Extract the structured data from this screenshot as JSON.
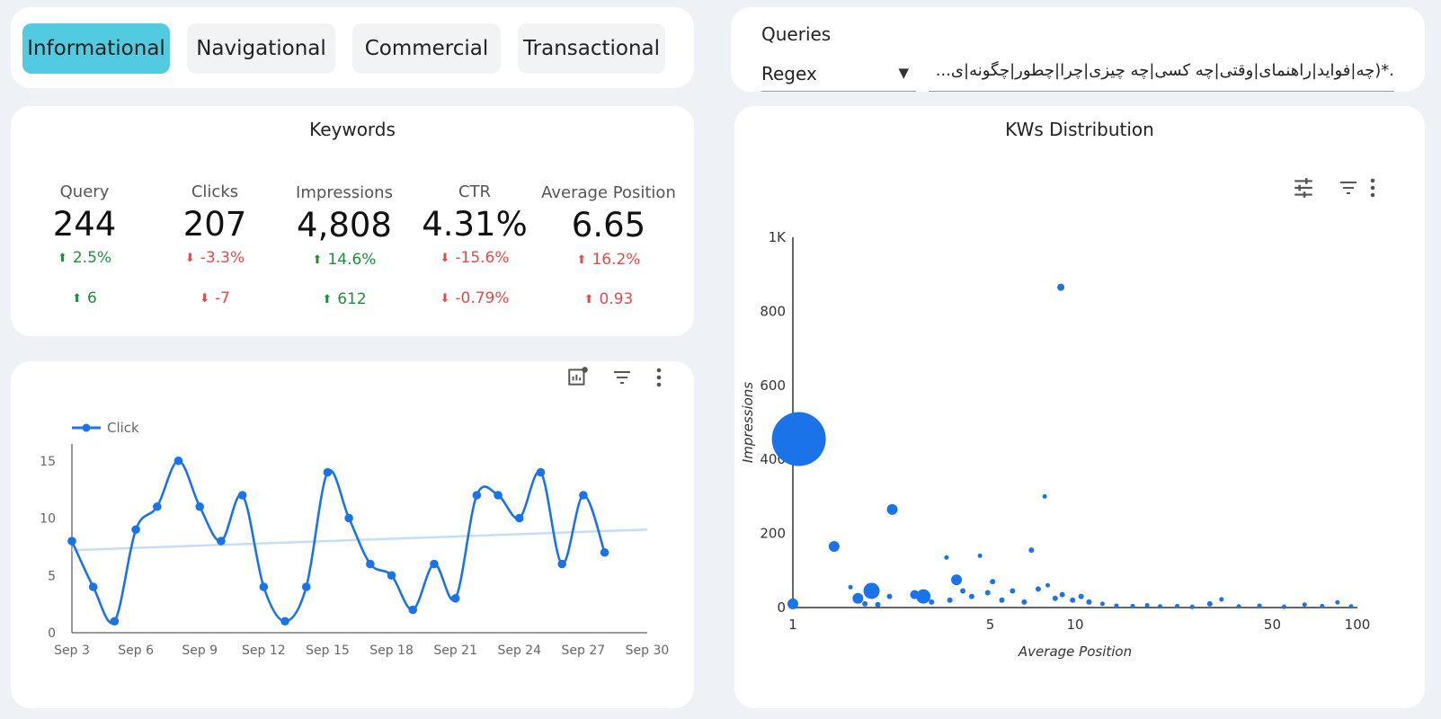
{
  "tabs": [
    "Informational",
    "Navigational",
    "Commercial",
    "Transactional"
  ],
  "queries": {
    "label": "Queries",
    "mode": "Regex",
    "pattern": ".*(چه|فواید|راهنمای|وقتی|چه کسی|چه چیزی|چرا|چطور|چگونه|ی..."
  },
  "keywords": {
    "title": "Keywords",
    "kpis": [
      {
        "label": "Query",
        "value": "244",
        "pct": "2.5%",
        "pct_dir": "up",
        "abs": "6",
        "abs_dir": "up"
      },
      {
        "label": "Clicks",
        "value": "207",
        "pct": "-3.3%",
        "pct_dir": "down",
        "abs": "-7",
        "abs_dir": "down"
      },
      {
        "label": "Impressions",
        "value": "4,808",
        "pct": "14.6%",
        "pct_dir": "up",
        "abs": "612",
        "abs_dir": "up"
      },
      {
        "label": "CTR",
        "value": "4.31%",
        "pct": "-15.6%",
        "pct_dir": "down",
        "abs": "-0.79%",
        "abs_dir": "down"
      },
      {
        "label": "Average Position",
        "value": "6.65",
        "pct": "16.2%",
        "pct_dir": "up_bad",
        "abs": "0.93",
        "abs_dir": "up_bad"
      }
    ]
  },
  "colors": {
    "accent": "#52cbe1",
    "series": "#1a73e8",
    "trend": "#c9dcf5",
    "up": "#1e8e3e",
    "down": "#e24a4a"
  },
  "chart_data": [
    {
      "type": "line",
      "legend": [
        "Click"
      ],
      "x_ticks": [
        "Sep 3",
        "Sep 6",
        "Sep 9",
        "Sep 12",
        "Sep 15",
        "Sep 18",
        "Sep 21",
        "Sep 24",
        "Sep 27",
        "Sep 30"
      ],
      "y_ticks": [
        0,
        5,
        10,
        15
      ],
      "ylim": [
        0,
        16
      ],
      "series": [
        {
          "name": "Click",
          "x": [
            "Sep 3",
            "Sep 4",
            "Sep 5",
            "Sep 6",
            "Sep 7",
            "Sep 8",
            "Sep 9",
            "Sep 10",
            "Sep 11",
            "Sep 12",
            "Sep 13",
            "Sep 14",
            "Sep 15",
            "Sep 16",
            "Sep 17",
            "Sep 18",
            "Sep 19",
            "Sep 20",
            "Sep 21",
            "Sep 22",
            "Sep 23",
            "Sep 24",
            "Sep 25",
            "Sep 26",
            "Sep 27",
            "Sep 28"
          ],
          "values": [
            8,
            4,
            1,
            9,
            11,
            15,
            11,
            8,
            12,
            4,
            1,
            4,
            14,
            10,
            6,
            5,
            2,
            6,
            3,
            12,
            12,
            10,
            14,
            6,
            12,
            7
          ]
        }
      ],
      "trendline": {
        "start": 7.2,
        "end": 9.0
      }
    },
    {
      "type": "scatter",
      "title": "KWs Distribution",
      "xlabel": "Average Position",
      "ylabel": "Impressions",
      "x_scale": "log",
      "x_ticks": [
        "1",
        "5",
        "10",
        "50",
        "100"
      ],
      "y_ticks": [
        "0",
        "200",
        "400",
        "600",
        "800",
        "1K"
      ],
      "xlim": [
        1,
        100
      ],
      "ylim": [
        0,
        1000
      ],
      "points": [
        {
          "x": 1.05,
          "y": 455,
          "size": 30
        },
        {
          "x": 8.9,
          "y": 865,
          "size": 4
        },
        {
          "x": 1.4,
          "y": 165,
          "size": 6
        },
        {
          "x": 2.25,
          "y": 265,
          "size": 6
        },
        {
          "x": 7.8,
          "y": 300,
          "size": 2.5
        },
        {
          "x": 1.9,
          "y": 45,
          "size": 9
        },
        {
          "x": 2.9,
          "y": 30,
          "size": 8
        },
        {
          "x": 3.8,
          "y": 75,
          "size": 6
        },
        {
          "x": 1.7,
          "y": 25,
          "size": 6
        },
        {
          "x": 2.7,
          "y": 35,
          "size": 5
        },
        {
          "x": 1.0,
          "y": 10,
          "size": 6
        },
        {
          "x": 7.0,
          "y": 155,
          "size": 3
        },
        {
          "x": 3.5,
          "y": 135,
          "size": 2.5
        },
        {
          "x": 4.6,
          "y": 140,
          "size": 2.5
        },
        {
          "x": 5.1,
          "y": 70,
          "size": 3
        },
        {
          "x": 4.0,
          "y": 45,
          "size": 3
        },
        {
          "x": 1.6,
          "y": 55,
          "size": 2.5
        },
        {
          "x": 1.8,
          "y": 10,
          "size": 3
        },
        {
          "x": 2.0,
          "y": 8,
          "size": 3
        },
        {
          "x": 2.2,
          "y": 30,
          "size": 3
        },
        {
          "x": 3.1,
          "y": 15,
          "size": 3
        },
        {
          "x": 3.6,
          "y": 20,
          "size": 3
        },
        {
          "x": 4.3,
          "y": 30,
          "size": 3
        },
        {
          "x": 4.9,
          "y": 40,
          "size": 3
        },
        {
          "x": 5.5,
          "y": 20,
          "size": 3
        },
        {
          "x": 6.0,
          "y": 45,
          "size": 3
        },
        {
          "x": 6.6,
          "y": 15,
          "size": 3
        },
        {
          "x": 7.4,
          "y": 50,
          "size": 3
        },
        {
          "x": 8.0,
          "y": 60,
          "size": 2.5
        },
        {
          "x": 8.5,
          "y": 25,
          "size": 3
        },
        {
          "x": 9.0,
          "y": 35,
          "size": 3
        },
        {
          "x": 9.8,
          "y": 20,
          "size": 3
        },
        {
          "x": 10.5,
          "y": 30,
          "size": 3
        },
        {
          "x": 11.2,
          "y": 15,
          "size": 3
        },
        {
          "x": 12.5,
          "y": 10,
          "size": 2.5
        },
        {
          "x": 14,
          "y": 5,
          "size": 2.5
        },
        {
          "x": 16,
          "y": 4,
          "size": 2.5
        },
        {
          "x": 18,
          "y": 6,
          "size": 2.5
        },
        {
          "x": 20,
          "y": 3,
          "size": 2.5
        },
        {
          "x": 23,
          "y": 4,
          "size": 2.5
        },
        {
          "x": 26,
          "y": 2,
          "size": 2.5
        },
        {
          "x": 30,
          "y": 10,
          "size": 3
        },
        {
          "x": 33,
          "y": 22,
          "size": 2.5
        },
        {
          "x": 38,
          "y": 3,
          "size": 2.5
        },
        {
          "x": 45,
          "y": 5,
          "size": 2.5
        },
        {
          "x": 55,
          "y": 2,
          "size": 2.5
        },
        {
          "x": 65,
          "y": 8,
          "size": 2.5
        },
        {
          "x": 75,
          "y": 4,
          "size": 2.5
        },
        {
          "x": 85,
          "y": 14,
          "size": 2.5
        },
        {
          "x": 95,
          "y": 3,
          "size": 2.5
        }
      ]
    }
  ]
}
